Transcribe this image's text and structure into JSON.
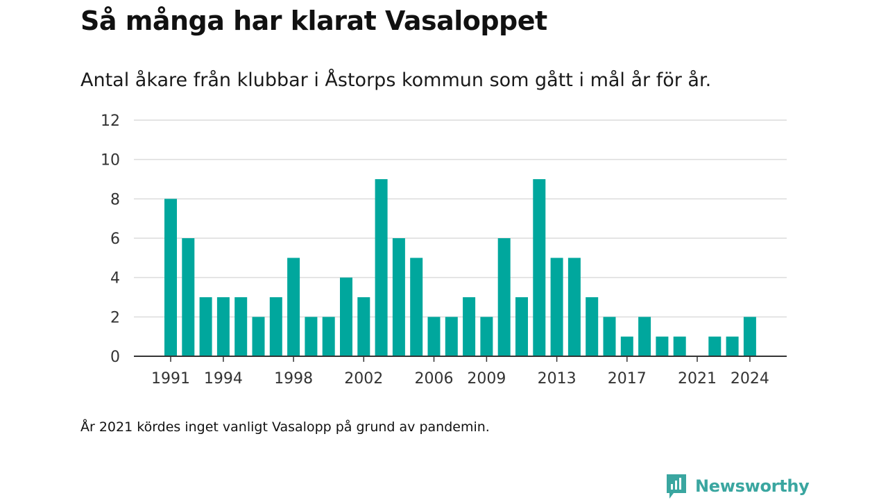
{
  "title": "Så många har klarat Vasaloppet",
  "subtitle": "Antal åkare från klubbar i Åstorps kommun som gått i mål år för år.",
  "note": "År 2021 kördes inget vanligt Vasalopp på grund av pandemin.",
  "brand": {
    "name": "Newsworthy",
    "color": "#3aa6a0",
    "icon": "newsworthy-logo-icon"
  },
  "chart_data": {
    "type": "bar",
    "bar_color": "#00a79d",
    "grid": true,
    "x": [
      1991,
      1992,
      1993,
      1994,
      1995,
      1996,
      1997,
      1998,
      1999,
      2000,
      2001,
      2002,
      2003,
      2004,
      2005,
      2006,
      2007,
      2008,
      2009,
      2010,
      2011,
      2012,
      2013,
      2014,
      2015,
      2016,
      2017,
      2018,
      2019,
      2020,
      2021,
      2022,
      2023,
      2024
    ],
    "values": [
      8,
      6,
      3,
      3,
      3,
      2,
      3,
      5,
      2,
      2,
      4,
      3,
      9,
      6,
      5,
      2,
      2,
      3,
      2,
      6,
      3,
      9,
      5,
      5,
      3,
      2,
      1,
      2,
      1,
      1,
      0,
      1,
      1,
      2
    ],
    "x_tick_labels": [
      "1991",
      "1994",
      "1998",
      "2002",
      "2006",
      "2009",
      "2013",
      "2017",
      "2021",
      "2024"
    ],
    "y_ticks": [
      0,
      2,
      4,
      6,
      8,
      10,
      12
    ],
    "ylim": [
      0,
      12
    ],
    "xlabel": "",
    "ylabel": ""
  }
}
